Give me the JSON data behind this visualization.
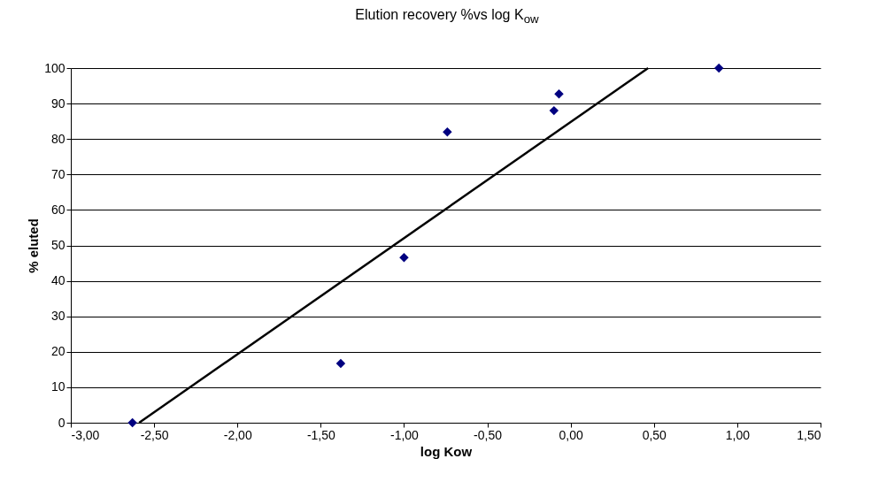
{
  "chart_data": {
    "type": "scatter",
    "title": "Elution recovery %vs log K$_{ow}$",
    "xlabel": "log Kow",
    "ylabel": "% eluted",
    "xlim": [
      -3,
      1.5
    ],
    "ylim": [
      0,
      100
    ],
    "xticks": [
      {
        "value": -3,
        "label": "-3,00"
      },
      {
        "value": -2.5,
        "label": "-2,50"
      },
      {
        "value": -2,
        "label": "-2,00"
      },
      {
        "value": -1.5,
        "label": "-1,50"
      },
      {
        "value": -1,
        "label": "-1,00"
      },
      {
        "value": -0.5,
        "label": "-0,50"
      },
      {
        "value": 0,
        "label": "0,00"
      },
      {
        "value": 0.5,
        "label": "0,50"
      },
      {
        "value": 1,
        "label": "1,00"
      },
      {
        "value": 1.5,
        "label": "1,50"
      }
    ],
    "yticks": [
      0,
      10,
      20,
      30,
      40,
      50,
      60,
      70,
      80,
      90,
      100
    ],
    "grid": "y",
    "series": [
      {
        "marker": "diamond",
        "color": "#000080",
        "x": [
          -2.63,
          -1.38,
          -1.0,
          -0.74,
          -0.1,
          -0.07,
          0.89
        ],
        "values": [
          0,
          16.7,
          46.6,
          82,
          88,
          92.7,
          100
        ]
      },
      {
        "type": "line",
        "marker": "none",
        "color": "#000000",
        "x": [
          -2.59,
          0.465
        ],
        "values": [
          0,
          100
        ]
      }
    ]
  }
}
